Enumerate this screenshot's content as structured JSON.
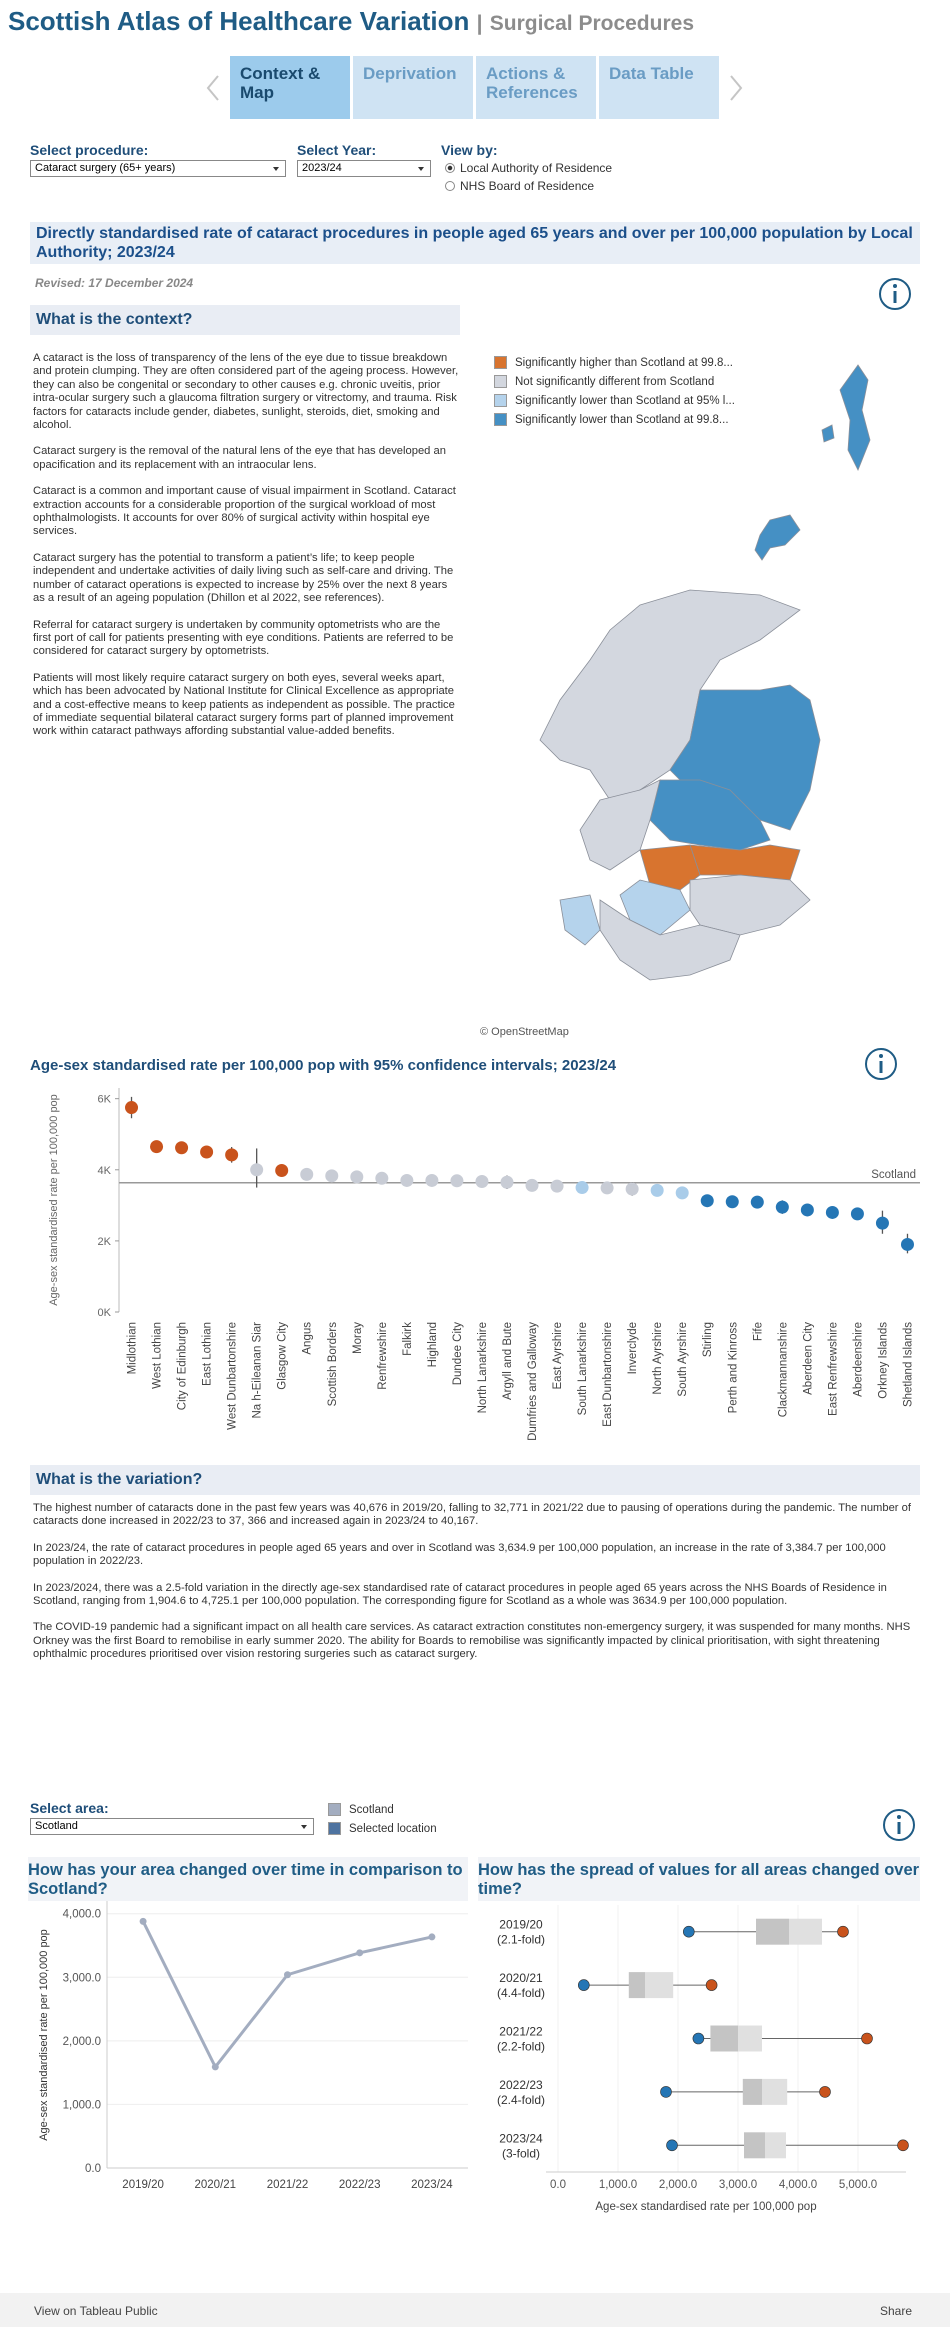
{
  "header": {
    "title": "Scottish Atlas of Healthcare Variation",
    "separator": "|",
    "subtitle": "Surgical Procedures"
  },
  "tabs": {
    "items": [
      "Context & Map",
      "Deprivation",
      "Actions & References",
      "Data Table"
    ],
    "active": 0
  },
  "controls": {
    "procedure_label": "Select procedure:",
    "procedure": "Cataract surgery (65+ years)",
    "year_label": "Select Year:",
    "year": "2023/24",
    "view_label": "View by:",
    "view_options": [
      "Local Authority of Residence",
      "NHS Board of Residence"
    ],
    "view_selected": 0
  },
  "banner": "Directly standardised rate of cataract procedures in people aged 65 years and over per 100,000 population by Local Authority; 2023/24",
  "revised": "Revised: 17 December 2024",
  "context": {
    "heading": "What is the context?",
    "paragraphs": [
      "A cataract is the loss of transparency of the lens of the eye due to tissue breakdown and protein clumping. They are often considered part of the ageing process. However, they can also be congenital or secondary to other causes e.g. chronic uveitis, prior intra-ocular surgery such a glaucoma filtration surgery or vitrectomy, and trauma. Risk factors for cataracts include gender, diabetes, sunlight, steroids, diet, smoking and alcohol.",
      "Cataract surgery is the removal of the natural lens of the eye that has developed an opacification and its replacement with an intraocular lens.",
      "Cataract is a common and important cause of visual impairment in Scotland. Cataract extraction accounts for a considerable proportion of the surgical workload of most ophthalmologists. It accounts for over 80% of surgical activity within hospital eye services.",
      "Cataract surgery has the potential to transform a patient’s life; to keep people independent and undertake activities of daily living such as self-care and driving. The number of cataract operations is expected to increase by 25% over the next 8 years as a result of an ageing population (Dhillon et al 2022, see references).",
      "Referral for cataract surgery is undertaken by community optometrists who are the first port of call for patients presenting with eye conditions. Patients are referred to be considered for cataract surgery by optometrists.",
      "Patients will most likely require cataract surgery on both eyes, several weeks apart, which has been advocated by National Institute for Clinical Excellence as appropriate and a cost-effective means to keep patients as independent as possible. The practice of immediate sequential bilateral cataract surgery forms part of planned improvement work within cataract pathways affording substantial value-added benefits."
    ]
  },
  "map": {
    "legend": [
      {
        "label": "Significantly higher than Scotland at 99.8...",
        "color": "#d8742f"
      },
      {
        "label": "Not significantly different from Scotland",
        "color": "#d3d7df"
      },
      {
        "label": "Significantly lower than Scotland at 95% l...",
        "color": "#b5d3ec"
      },
      {
        "label": "Significantly lower than Scotland at 99.8...",
        "color": "#4590c4"
      }
    ],
    "attribution": "© OpenStreetMap"
  },
  "chart_data": [
    {
      "type": "dot",
      "title": "Age-sex standardised rate per 100,000 pop with 95% confidence intervals; 2023/24",
      "y_label": "Age-sex standardised rate per 100,000 pop",
      "categories": [
        "Midlothian",
        "West Lothian",
        "City of Edinburgh",
        "East Lothian",
        "West Dunbartonshire",
        "Na h-Eileanan Siar",
        "Glasgow City",
        "Angus",
        "Scottish Borders",
        "Moray",
        "Renfrewshire",
        "Falkirk",
        "Highland",
        "Dundee City",
        "North Lanarkshire",
        "Argyll and Bute",
        "Dumfries and Galloway",
        "East Ayrshire",
        "South Lanarkshire",
        "East Dunbartonshire",
        "Inverclyde",
        "North Ayrshire",
        "South Ayrshire",
        "Stirling",
        "Perth and Kinross",
        "Fife",
        "Clackmannanshire",
        "Aberdeen City",
        "East Renfrewshire",
        "Aberdeenshire",
        "Orkney Islands",
        "Shetland Islands"
      ],
      "values": [
        5750,
        4650,
        4620,
        4500,
        4420,
        4000,
        3980,
        3870,
        3830,
        3800,
        3760,
        3700,
        3700,
        3690,
        3670,
        3650,
        3560,
        3540,
        3500,
        3490,
        3460,
        3420,
        3350,
        3130,
        3100,
        3090,
        2950,
        2870,
        2800,
        2760,
        2500,
        1900
      ],
      "ci_low": [
        5450,
        4480,
        4530,
        4330,
        4200,
        3500,
        3900,
        3740,
        3660,
        3640,
        3620,
        3560,
        3590,
        3560,
        3580,
        3460,
        3430,
        3380,
        3420,
        3340,
        3270,
        3310,
        3230,
        2980,
        2990,
        2990,
        2760,
        2750,
        2640,
        2670,
        2200,
        1650
      ],
      "ci_high": [
        6050,
        4820,
        4710,
        4670,
        4640,
        4600,
        4060,
        4000,
        4000,
        3960,
        3900,
        3840,
        3810,
        3820,
        3760,
        3840,
        3690,
        3700,
        3580,
        3640,
        3650,
        3530,
        3470,
        3280,
        3210,
        3190,
        3140,
        2990,
        2960,
        2850,
        2850,
        2200
      ],
      "colors": [
        "#c9531c",
        "#c9531c",
        "#c9531c",
        "#c9531c",
        "#c9531c",
        "#c8ccd5",
        "#c9531c",
        "#c8ccd5",
        "#c8ccd5",
        "#c8ccd5",
        "#c8ccd5",
        "#c8ccd5",
        "#c8ccd5",
        "#c8ccd5",
        "#c8ccd5",
        "#c8ccd5",
        "#c8ccd5",
        "#c8ccd5",
        "#a9cce9",
        "#c8ccd5",
        "#c8ccd5",
        "#a9cce9",
        "#a9cce9",
        "#2576b5",
        "#2576b5",
        "#2576b5",
        "#2576b5",
        "#2576b5",
        "#2576b5",
        "#2576b5",
        "#2576b5",
        "#2576b5"
      ],
      "reference": {
        "label": "Scotland",
        "value": 3634.9
      },
      "ylim": [
        0,
        6300
      ],
      "yticks": [
        {
          "value": 0,
          "label": "0K"
        },
        {
          "value": 2000,
          "label": "2K"
        },
        {
          "value": 4000,
          "label": "4K"
        },
        {
          "value": 6000,
          "label": "6K"
        }
      ]
    },
    {
      "type": "line",
      "title": "How has your area changed over time in comparison to Scotland?",
      "y_label": "Age-sex standardised rate per 100,000 pop",
      "categories": [
        "2019/20",
        "2020/21",
        "2021/22",
        "2022/23",
        "2023/24"
      ],
      "series": [
        {
          "name": "Scotland",
          "color": "#a3adc0",
          "values": [
            3880,
            1590,
            3040,
            3384.7,
            3634.9
          ]
        }
      ],
      "ylim": [
        0,
        4200
      ],
      "yticks": [
        {
          "value": 0,
          "label": "0.0"
        },
        {
          "value": 1000,
          "label": "1,000.0"
        },
        {
          "value": 2000,
          "label": "2,000.0"
        },
        {
          "value": 3000,
          "label": "3,000.0"
        },
        {
          "value": 4000,
          "label": "4,000.0"
        }
      ],
      "grid": true
    },
    {
      "type": "box",
      "title": "How has the spread of values for all areas changed over time?",
      "x_label": "Age-sex standardised rate per 100,000 pop",
      "rows": [
        {
          "label": "2019/20",
          "fold": "(2.1-fold)",
          "min": 2180,
          "q1": 3300,
          "median": 3850,
          "q3": 4400,
          "max": 4750
        },
        {
          "label": "2020/21",
          "fold": "(4.4-fold)",
          "min": 430,
          "q1": 1180,
          "median": 1450,
          "q3": 1920,
          "max": 2560
        },
        {
          "label": "2021/22",
          "fold": "(2.2-fold)",
          "min": 2340,
          "q1": 2540,
          "median": 3000,
          "q3": 3400,
          "max": 5150
        },
        {
          "label": "2022/23",
          "fold": "(2.4-fold)",
          "min": 1800,
          "q1": 3080,
          "median": 3400,
          "q3": 3820,
          "max": 4450
        },
        {
          "label": "2023/24",
          "fold": "(3-fold)",
          "min": 1900,
          "q1": 3100,
          "median": 3450,
          "q3": 3800,
          "max": 5750
        }
      ],
      "min_color": "#2576b5",
      "max_color": "#c9531c",
      "xlim": [
        -200,
        5800
      ],
      "xticks": [
        {
          "value": 0,
          "label": "0.0"
        },
        {
          "value": 1000,
          "label": "1,000.0"
        },
        {
          "value": 2000,
          "label": "2,000.0"
        },
        {
          "value": 3000,
          "label": "3,000.0"
        },
        {
          "value": 4000,
          "label": "4,000.0"
        },
        {
          "value": 5000,
          "label": "5,000.0"
        }
      ],
      "grid": true
    }
  ],
  "variation": {
    "heading": "What is the variation?",
    "paragraphs": [
      "The highest number of cataracts done in the past few years was 40,676 in 2019/20, falling to 32,771 in 2021/22 due to pausing of operations during the pandemic. The number of cataracts done increased in 2022/23 to 37, 366 and increased again in 2023/24 to 40,167.",
      "In 2023/24, the rate of cataract procedures in people aged 65 years and over in Scotland was 3,634.9 per 100,000 population, an increase in the rate of 3,384.7 per 100,000 population in 2022/23.",
      "In 2023/2024, there was a 2.5-fold variation in the directly age-sex standardised rate of cataract procedures in people aged 65 years across the NHS Boards of Residence in Scotland, ranging from 1,904.6 to 4,725.1 per 100,000 population. The corresponding figure for Scotland as a whole was 3634.9 per 100,000 population.",
      "The COVID-19 pandemic had a significant impact on all health care services. As cataract extraction constitutes non-emergency surgery, it was suspended for many months. NHS Orkney was the first Board to remobilise in early summer 2020. The ability for Boards to remobilise was significantly impacted by clinical prioritisation, with sight threatening ophthalmic procedures prioritised over vision restoring surgeries such as cataract surgery."
    ]
  },
  "area_selector": {
    "label": "Select area:",
    "value": "Scotland",
    "legend": [
      {
        "label": "Scotland",
        "color": "#a3adc0"
      },
      {
        "label": "Selected location",
        "color": "#4e73a0"
      }
    ]
  },
  "footer": {
    "link": "View on Tableau Public",
    "share": "Share"
  }
}
